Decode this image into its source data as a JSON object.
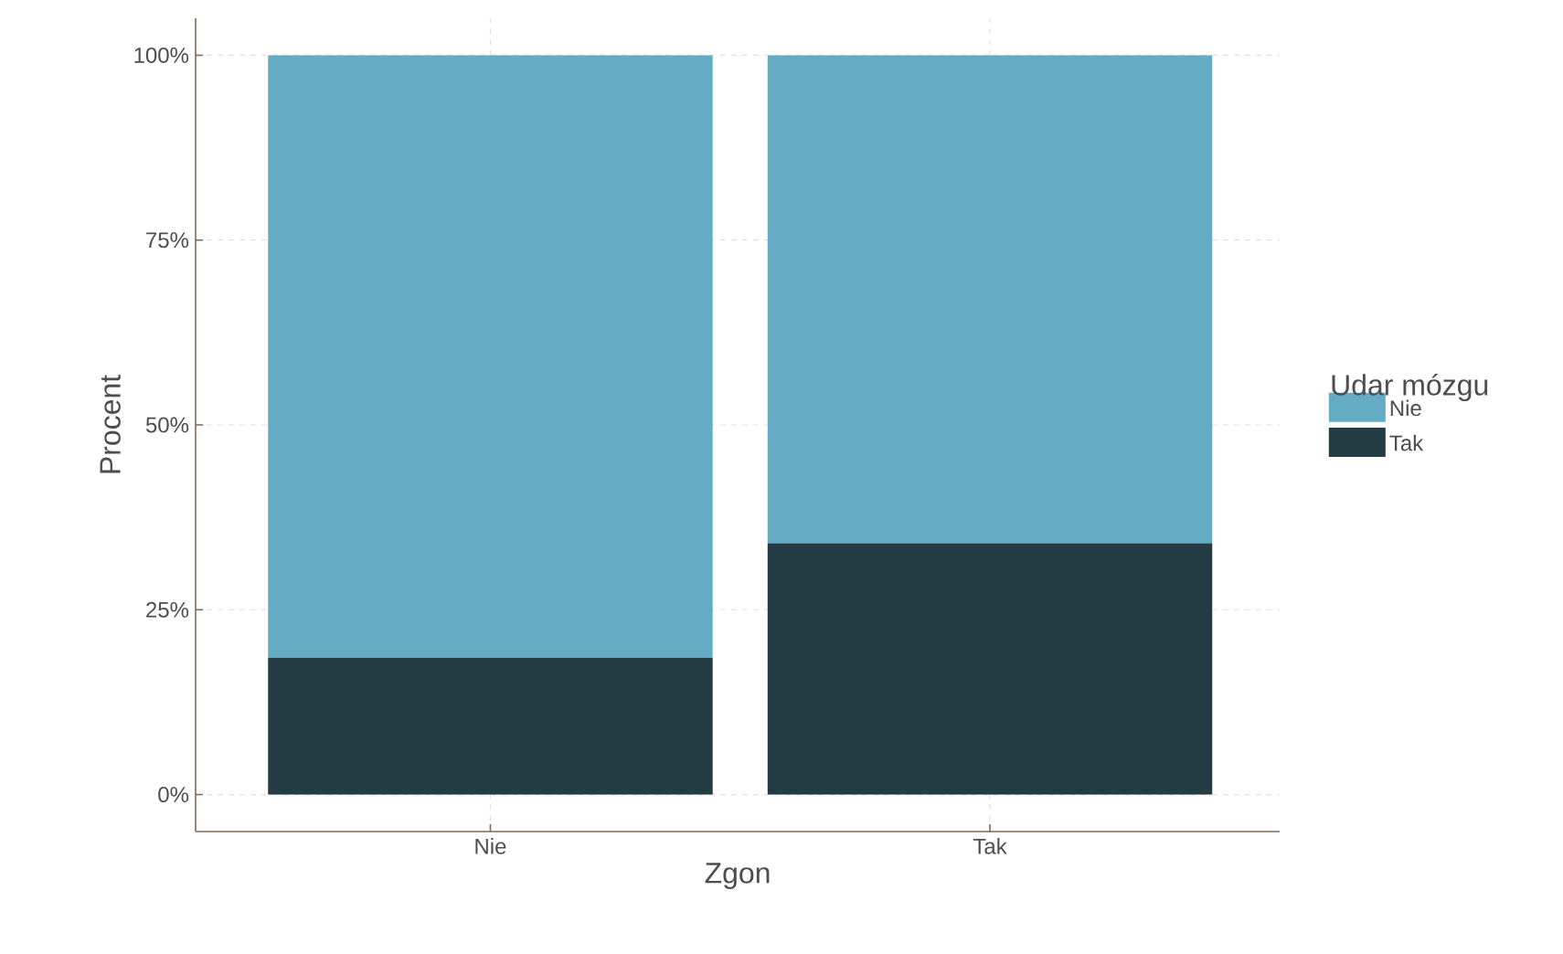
{
  "chart_data": {
    "type": "bar",
    "stacked": true,
    "xlabel": "Zgon",
    "ylabel": "Procent",
    "legend_title": "Udar mózgu",
    "categories": [
      "Nie",
      "Tak"
    ],
    "series": [
      {
        "name": "Tak",
        "color": "#233b43",
        "values": [
          18.5,
          34
        ]
      },
      {
        "name": "Nie",
        "color": "#64acc3",
        "values": [
          81.5,
          66
        ]
      }
    ],
    "ylim": [
      -5,
      105
    ],
    "yticks": [
      {
        "value": 0,
        "label": "0%"
      },
      {
        "value": 25,
        "label": "25%"
      },
      {
        "value": 50,
        "label": "50%"
      },
      {
        "value": 75,
        "label": "75%"
      },
      {
        "value": 100,
        "label": "100%"
      }
    ],
    "grid": true,
    "legend": "right"
  }
}
